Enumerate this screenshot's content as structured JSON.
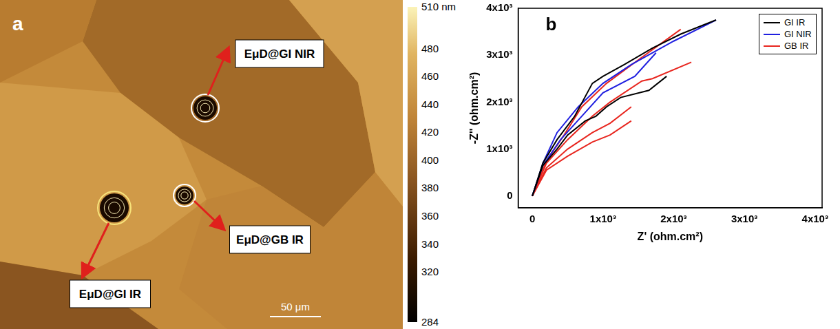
{
  "chart_data": [
    {
      "type": "height_map",
      "panel_label": "a",
      "annotations": [
        "EμD@GI NIR",
        "EμD@GB IR",
        "EμD@GI IR"
      ],
      "scale_bar": "50 μm",
      "colorbar": {
        "range": [
          284,
          510
        ],
        "ticks": [
          {
            "value": 510,
            "label": "510 nm"
          },
          480,
          460,
          440,
          420,
          400,
          380,
          360,
          340,
          320,
          284
        ]
      }
    },
    {
      "type": "line",
      "panel_label": "b",
      "x_label": "Z' (ohm.cm²)",
      "y_label": "-Z'' (ohm.cm²)",
      "xlim": [
        -200,
        4100
      ],
      "ylim": [
        -250,
        4000
      ],
      "xticks": [
        0,
        {
          "value": 1000,
          "label": "1x10³"
        },
        {
          "value": 2000,
          "label": "2x10³"
        },
        {
          "value": 3000,
          "label": "3x10³"
        },
        {
          "value": 4000,
          "label": "4x10³"
        }
      ],
      "yticks": [
        0,
        {
          "value": 1000,
          "label": "1x10³"
        },
        {
          "value": 2000,
          "label": "2x10³"
        },
        {
          "value": 3000,
          "label": "3x10³"
        },
        {
          "value": 4000,
          "label": "4x10³"
        }
      ],
      "grid": false,
      "legend": "upper right",
      "series": [
        {
          "name": "GI IR",
          "color": "#000000",
          "x": [
            0,
            150,
            350,
            600,
            850,
            1000,
            1300,
            1700,
            2100,
            2600
          ],
          "values": [
            0,
            700,
            1200,
            1700,
            2400,
            2550,
            2800,
            3150,
            3450,
            3750
          ]
        },
        {
          "name": "GI IR",
          "color": "#000000",
          "x": [
            0,
            150,
            350,
            500,
            750,
            900,
            1050,
            1250,
            1650,
            1900
          ],
          "values": [
            0,
            650,
            1000,
            1300,
            1600,
            1700,
            1900,
            2100,
            2250,
            2550
          ]
        },
        {
          "name": "GI NIR",
          "color": "#1f1fe0",
          "x": [
            0,
            150,
            350,
            650,
            1000,
            1400,
            2000,
            2600
          ],
          "values": [
            0,
            700,
            1350,
            1900,
            2400,
            2800,
            3300,
            3750
          ]
        },
        {
          "name": "GI NIR",
          "color": "#1f1fe0",
          "x": [
            0,
            150,
            400,
            700,
            1000,
            1450,
            1750
          ],
          "values": [
            0,
            650,
            1200,
            1700,
            2200,
            2550,
            3050
          ]
        },
        {
          "name": "GB IR",
          "color": "#e8261f",
          "x": [
            0,
            200,
            450,
            700,
            1050,
            1500,
            2100
          ],
          "values": [
            0,
            750,
            1300,
            1900,
            2400,
            2900,
            3550
          ]
        },
        {
          "name": "GB IR",
          "color": "#e8261f",
          "x": [
            0,
            200,
            500,
            850,
            1100,
            1550,
            1700,
            2250
          ],
          "values": [
            0,
            700,
            1200,
            1700,
            2000,
            2450,
            2500,
            2850
          ]
        },
        {
          "name": "GB IR",
          "color": "#e8261f",
          "x": [
            0,
            200,
            500,
            850,
            1100,
            1400
          ],
          "values": [
            0,
            600,
            1000,
            1350,
            1550,
            1900
          ]
        },
        {
          "name": "GB IR",
          "color": "#e8261f",
          "x": [
            0,
            200,
            500,
            850,
            1100,
            1400
          ],
          "values": [
            0,
            550,
            850,
            1150,
            1300,
            1600
          ]
        }
      ]
    }
  ]
}
